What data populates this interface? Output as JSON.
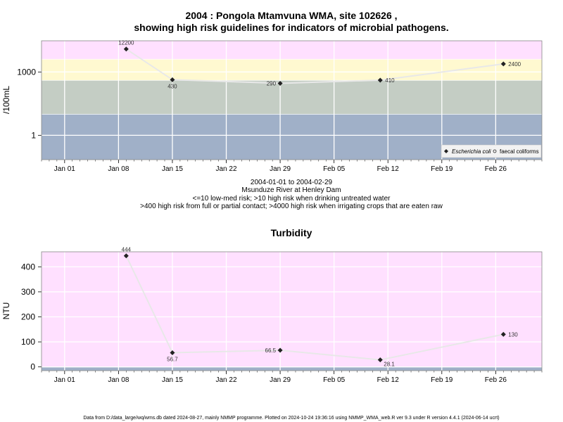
{
  "footer": "Data from D:/data_large/wq/wms.db dated 2024-08-27, mainly NMMP programme. Plotted on 2024-10-24 19:36:16 using NMMP_WMA_web.R ver 9.3 under R version 4.4.1 (2024-06-14 ucrt)",
  "colors": {
    "zone_pink": "#ffe0ff",
    "zone_yellow": "#fff9d0",
    "zone_grey": "#c4cdc4",
    "zone_blue": "#a0b0c8",
    "line": "#e8e8e8",
    "point": "#222222"
  },
  "chart_data": [
    {
      "type": "line",
      "title_line1": "2004 : Pongola Mtamvuna WMA, site 102626 ,",
      "title_line2": "showing high risk guidelines for indicators of microbial pathogens.",
      "ylabel": "/100mL",
      "y_scale": "log",
      "y_ticks": [
        {
          "value": 1,
          "label": "1"
        },
        {
          "value": 1000,
          "label": "1000"
        }
      ],
      "x_ticks": [
        "Jan 01",
        "Jan 08",
        "Jan 15",
        "Jan 22",
        "Jan 29",
        "Feb 05",
        "Feb 12",
        "Feb 19",
        "Feb 26"
      ],
      "xlim": [
        "2003-12-29",
        "2004-03-03"
      ],
      "bands": [
        {
          "from": 0.07,
          "to": 10,
          "color": "zone_blue"
        },
        {
          "from": 10,
          "to": 400,
          "color": "zone_grey"
        },
        {
          "from": 400,
          "to": 4000,
          "color": "zone_yellow"
        },
        {
          "from": 4000,
          "to": 30000,
          "color": "zone_pink"
        }
      ],
      "series": [
        {
          "name": "Escherichia coli",
          "points": [
            {
              "date": "2004-01-09",
              "value": 12200,
              "label": "12200",
              "label_pos": "above"
            },
            {
              "date": "2004-01-15",
              "value": 430,
              "label": "430",
              "label_pos": "below"
            },
            {
              "date": "2004-01-29",
              "value": 290,
              "label": "290",
              "label_pos": "left"
            },
            {
              "date": "2004-02-11",
              "value": 410,
              "label": "410",
              "label_pos": "right"
            },
            {
              "date": "2004-02-27",
              "value": 2400,
              "label": "2400",
              "label_pos": "right"
            }
          ]
        },
        {
          "name": "faecal coliforms",
          "points": []
        }
      ],
      "legend": {
        "position": "bottom-right",
        "items": [
          "Escherichia coli",
          "faecal coliforms"
        ]
      },
      "subtitle_lines": [
        "2004-01-01 to 2004-02-29",
        "Msunduze River at Henley Dam",
        "<=10 low-med risk; >10 high risk when drinking untreated water",
        ">400 high risk from full or partial contact; >4000 high risk when irrigating crops that are eaten raw"
      ]
    },
    {
      "type": "line",
      "title": "Turbidity",
      "ylabel": "NTU",
      "y_scale": "linear",
      "ylim": [
        -15,
        460
      ],
      "y_ticks": [
        0,
        100,
        200,
        300,
        400
      ],
      "x_ticks": [
        "Jan 01",
        "Jan 08",
        "Jan 15",
        "Jan 22",
        "Jan 29",
        "Feb 05",
        "Feb 12",
        "Feb 19",
        "Feb 26"
      ],
      "xlim": [
        "2003-12-29",
        "2004-03-03"
      ],
      "bands": [
        {
          "from": -15,
          "to": 0,
          "color": "zone_blue"
        },
        {
          "from": 0,
          "to": 460,
          "color": "zone_pink"
        }
      ],
      "series": [
        {
          "name": "Turbidity",
          "points": [
            {
              "date": "2004-01-09",
              "value": 444,
              "label": "444",
              "label_pos": "above"
            },
            {
              "date": "2004-01-15",
              "value": 56.7,
              "label": "56.7",
              "label_pos": "below"
            },
            {
              "date": "2004-01-29",
              "value": 66.5,
              "label": "66.5",
              "label_pos": "left"
            },
            {
              "date": "2004-02-11",
              "value": 28.1,
              "label": "28.1",
              "label_pos": "below-right"
            },
            {
              "date": "2004-02-27",
              "value": 130,
              "label": "130",
              "label_pos": "right"
            }
          ]
        }
      ]
    }
  ]
}
